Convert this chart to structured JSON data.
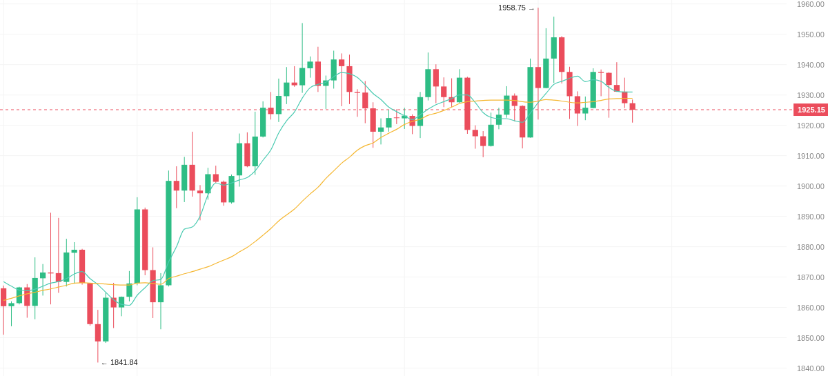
{
  "chart_data": {
    "type": "candlestick",
    "categories": [
      null,
      null,
      null,
      null,
      null,
      null,
      null,
      null,
      null,
      null,
      null,
      null,
      null,
      null,
      null,
      null,
      null,
      null,
      null,
      null,
      null,
      null,
      null,
      null,
      null,
      null,
      null,
      null,
      null,
      null,
      null,
      null,
      null,
      null,
      null,
      null,
      null,
      null,
      null,
      null,
      null,
      null,
      null,
      null,
      null,
      null,
      null,
      null,
      null,
      null,
      null,
      null,
      null,
      null,
      null,
      null,
      null,
      null,
      null,
      null,
      null,
      null,
      null,
      null,
      null,
      null,
      null,
      null,
      null,
      null,
      null,
      null,
      null,
      null,
      null,
      null,
      null,
      null,
      null,
      null,
      null
    ],
    "series": [
      {
        "type": "candlestick",
        "ohlc": [
          [
            1866.3,
            1867.2,
            1851.0,
            1860.4
          ],
          [
            1860.4,
            1862.0,
            1853.8,
            1861.4
          ],
          [
            1861.4,
            1866.8,
            1861.0,
            1866.6
          ],
          [
            1866.6,
            1867.7,
            1856.6,
            1860.5
          ],
          [
            1860.5,
            1876.5,
            1856.1,
            1869.7
          ],
          [
            1869.6,
            1874.3,
            1863.9,
            1871.5
          ],
          [
            1871.5,
            1891.2,
            1861.0,
            1871.2
          ],
          [
            1871.3,
            1889.5,
            1864.8,
            1868.4
          ],
          [
            1868.4,
            1882.6,
            1866.9,
            1878.1
          ],
          [
            1878.0,
            1881.5,
            1867.8,
            1879.0
          ],
          [
            1879.0,
            1879.3,
            1867.5,
            1868.1
          ],
          [
            1868.0,
            1868.1,
            1854.0,
            1854.5
          ],
          [
            1854.5,
            1859.2,
            1841.84,
            1848.8
          ],
          [
            1848.8,
            1864.9,
            1848.3,
            1863.2
          ],
          [
            1863.2,
            1868.1,
            1853.2,
            1860.0
          ],
          [
            1860.0,
            1863.6,
            1857.1,
            1863.5
          ],
          [
            1863.5,
            1872.0,
            1862.0,
            1867.9
          ],
          [
            1867.9,
            1896.3,
            1867.3,
            1892.3
          ],
          [
            1892.3,
            1892.9,
            1870.6,
            1872.3
          ],
          [
            1872.3,
            1879.8,
            1856.5,
            1861.7
          ],
          [
            1861.7,
            1871.3,
            1852.8,
            1867.3
          ],
          [
            1867.3,
            1905.1,
            1866.9,
            1901.7
          ],
          [
            1901.7,
            1906.5,
            1892.7,
            1898.5
          ],
          [
            1898.5,
            1909.6,
            1894.7,
            1907.0
          ],
          [
            1907.0,
            1917.9,
            1896.5,
            1898.5
          ],
          [
            1898.5,
            1900.3,
            1888.7,
            1897.6
          ],
          [
            1897.6,
            1906.0,
            1895.5,
            1903.9
          ],
          [
            1903.9,
            1906.7,
            1901.0,
            1901.4
          ],
          [
            1901.4,
            1901.8,
            1893.5,
            1894.6
          ],
          [
            1894.6,
            1903.8,
            1894.2,
            1903.3
          ],
          [
            1903.5,
            1917.3,
            1899.8,
            1914.1
          ],
          [
            1914.1,
            1917.7,
            1906.2,
            1906.5
          ],
          [
            1906.5,
            1924.5,
            1903.7,
            1916.3
          ],
          [
            1916.3,
            1927.9,
            1916.0,
            1925.8
          ],
          [
            1925.8,
            1931.0,
            1921.9,
            1923.7
          ],
          [
            1923.7,
            1935.4,
            1921.1,
            1929.7
          ],
          [
            1929.6,
            1939.2,
            1927.0,
            1934.1
          ],
          [
            1934.1,
            1939.5,
            1932.7,
            1933.2
          ],
          [
            1933.2,
            1953.7,
            1930.7,
            1938.9
          ],
          [
            1938.8,
            1942.7,
            1935.7,
            1941.0
          ],
          [
            1941.0,
            1945.9,
            1931.0,
            1933.0
          ],
          [
            1933.0,
            1936.4,
            1925.4,
            1934.8
          ],
          [
            1934.8,
            1944.6,
            1932.1,
            1941.7
          ],
          [
            1941.7,
            1943.7,
            1926.3,
            1939.5
          ],
          [
            1939.5,
            1943.3,
            1927.0,
            1931.0
          ],
          [
            1931.0,
            1931.9,
            1922.8,
            1930.7
          ],
          [
            1930.8,
            1934.6,
            1920.7,
            1925.6
          ],
          [
            1925.6,
            1927.6,
            1912.6,
            1917.9
          ],
          [
            1917.9,
            1922.3,
            1913.7,
            1919.3
          ],
          [
            1919.3,
            1925.1,
            1917.9,
            1922.4
          ],
          [
            1922.6,
            1925.3,
            1920.4,
            1922.4
          ],
          [
            1922.3,
            1925.8,
            1918.8,
            1923.2
          ],
          [
            1923.1,
            1923.6,
            1917.1,
            1919.8
          ],
          [
            1919.8,
            1931.0,
            1915.8,
            1929.3
          ],
          [
            1929.3,
            1944.0,
            1928.2,
            1938.5
          ],
          [
            1938.5,
            1940.1,
            1927.3,
            1932.8
          ],
          [
            1932.8,
            1935.8,
            1926.0,
            1929.3
          ],
          [
            1929.3,
            1935.5,
            1926.0,
            1927.6
          ],
          [
            1927.6,
            1938.5,
            1927.4,
            1935.7
          ],
          [
            1935.7,
            1936.0,
            1917.2,
            1918.5
          ],
          [
            1918.5,
            1920.0,
            1912.3,
            1916.4
          ],
          [
            1916.4,
            1918.1,
            1909.5,
            1913.2
          ],
          [
            1913.2,
            1924.2,
            1913.0,
            1920.2
          ],
          [
            1920.2,
            1925.8,
            1918.7,
            1923.5
          ],
          [
            1923.5,
            1932.9,
            1922.5,
            1929.8
          ],
          [
            1929.8,
            1930.5,
            1921.3,
            1926.4
          ],
          [
            1926.4,
            1926.6,
            1912.4,
            1916.0
          ],
          [
            1916.0,
            1942.0,
            1915.9,
            1939.2
          ],
          [
            1939.2,
            1958.75,
            1921.9,
            1932.3
          ],
          [
            1932.3,
            1952.0,
            1932.2,
            1942.0
          ],
          [
            1942.0,
            1955.8,
            1934.0,
            1949.0
          ],
          [
            1949.0,
            1949.4,
            1933.8,
            1937.6
          ],
          [
            1937.6,
            1939.3,
            1922.1,
            1929.6
          ],
          [
            1929.6,
            1931.2,
            1919.8,
            1923.9
          ],
          [
            1923.9,
            1929.5,
            1921.7,
            1925.8
          ],
          [
            1925.7,
            1938.8,
            1925.6,
            1937.6
          ],
          [
            1937.6,
            1938.4,
            1929.6,
            1937.3
          ],
          [
            1937.3,
            1937.5,
            1922.5,
            1933.3
          ],
          [
            1933.3,
            1940.8,
            1931.0,
            1931.1
          ],
          [
            1931.1,
            1935.7,
            1925.7,
            1927.3
          ],
          [
            1927.3,
            1928.5,
            1920.9,
            1925.15
          ]
        ],
        "colors": [
          "#eb4d5c",
          "#2ebd85",
          "#2ebd85",
          "#eb4d5c",
          "#2ebd85",
          "#2ebd85",
          "#eb4d5c",
          "#eb4d5c",
          "#2ebd85",
          "#2ebd85",
          "#eb4d5c",
          "#eb4d5c",
          "#eb4d5c",
          "#2ebd85",
          "#eb4d5c",
          "#2ebd85",
          "#2ebd85",
          "#2ebd85",
          "#eb4d5c",
          "#eb4d5c",
          "#2ebd85",
          "#2ebd85",
          "#eb4d5c",
          "#2ebd85",
          "#eb4d5c",
          "#eb4d5c",
          "#2ebd85",
          "#eb4d5c",
          "#eb4d5c",
          "#2ebd85",
          "#2ebd85",
          "#eb4d5c",
          "#2ebd85",
          "#2ebd85",
          "#eb4d5c",
          "#2ebd85",
          "#2ebd85",
          "#eb4d5c",
          "#2ebd85",
          "#2ebd85",
          "#eb4d5c",
          "#2ebd85",
          "#2ebd85",
          "#eb4d5c",
          "#eb4d5c",
          "#eb4d5c",
          "#eb4d5c",
          "#eb4d5c",
          "#2ebd85",
          "#2ebd85",
          "#eb4d5c",
          "#2ebd85",
          "#eb4d5c",
          "#2ebd85",
          "#2ebd85",
          "#eb4d5c",
          "#eb4d5c",
          "#eb4d5c",
          "#2ebd85",
          "#eb4d5c",
          "#eb4d5c",
          "#eb4d5c",
          "#2ebd85",
          "#2ebd85",
          "#2ebd85",
          "#eb4d5c",
          "#eb4d5c",
          "#2ebd85",
          "#eb4d5c",
          "#2ebd85",
          "#2ebd85",
          "#eb4d5c",
          "#eb4d5c",
          "#eb4d5c",
          "#2ebd85",
          "#2ebd85",
          "#eb4d5c",
          "#eb4d5c",
          "#eb4d5c",
          "#eb4d5c",
          "#eb4d5c"
        ]
      },
      {
        "type": "line",
        "color": "#4ccbb2",
        "values": [
          1868.5,
          1867,
          1865.7,
          1865.5,
          1866,
          1867,
          1868,
          1868.5,
          1869.5,
          1871,
          1871.8,
          1869.5,
          1867.5,
          1865,
          1862.5,
          1861,
          1860.7,
          1864,
          1866.5,
          1868.8,
          1869.2,
          1875,
          1880,
          1885.8,
          1886.5,
          1890.1,
          1897,
          1901,
          1900.3,
          1901,
          1902,
          1902.8,
          1905,
          1908.5,
          1911.9,
          1917.5,
          1921.5,
          1924.4,
          1929,
          1932.4,
          1933.5,
          1934.2,
          1936,
          1937.4,
          1937,
          1935.8,
          1933.3,
          1930.5,
          1928.5,
          1926,
          1924.5,
          1923.2,
          1921.9,
          1923.5,
          1925.3,
          1926.8,
          1927.8,
          1928.8,
          1930,
          1930,
          1927.5,
          1924.2,
          1922.6,
          1922.2,
          1922.2,
          1921.5,
          1921,
          1924,
          1927.5,
          1930.5,
          1933.5,
          1934.5,
          1935.5,
          1936.2,
          1934.4,
          1935,
          1934.5,
          1932.5,
          1931.2,
          1931,
          1931
        ]
      },
      {
        "type": "line",
        "color": "#f5b731",
        "values": [
          1862.3,
          1863,
          1863.8,
          1864.5,
          1865,
          1865.6,
          1866.1,
          1866.7,
          1867.3,
          1868,
          1868.1,
          1868,
          1867.9,
          1867.7,
          1867.5,
          1867.4,
          1867.4,
          1868,
          1868.1,
          1867.9,
          1867.6,
          1869.5,
          1870.3,
          1871.1,
          1871.8,
          1872.6,
          1873.4,
          1874.5,
          1875.6,
          1876.7,
          1878.3,
          1879.8,
          1881.7,
          1883.8,
          1886,
          1888.5,
          1890.5,
          1892.4,
          1895,
          1897.4,
          1899.6,
          1902.5,
          1905,
          1907.5,
          1909.5,
          1911.8,
          1913.3,
          1914.2,
          1916,
          1917.4,
          1918.7,
          1920.3,
          1921.3,
          1922,
          1923.3,
          1924,
          1924.9,
          1926,
          1927.2,
          1927.8,
          1928,
          1928.2,
          1928.3,
          1928.3,
          1928.3,
          1928.2,
          1927.8,
          1927.6,
          1928,
          1928.5,
          1928.3,
          1928,
          1927.6,
          1927.4,
          1927.6,
          1927.8,
          1928.2,
          1928.7,
          1928.8,
          1928.9,
          1928.9
        ]
      }
    ],
    "ylim": [
      1837.4,
      1961.3
    ],
    "yticks": [
      {
        "value": 1840,
        "label": "1840.00"
      },
      {
        "value": 1850,
        "label": "1850.00"
      },
      {
        "value": 1860,
        "label": "1860.00"
      },
      {
        "value": 1870,
        "label": "1870.00"
      },
      {
        "value": 1880,
        "label": "1880.00"
      },
      {
        "value": 1890,
        "label": "1890.00"
      },
      {
        "value": 1900,
        "label": "1900.00"
      },
      {
        "value": 1910,
        "label": "1910.00"
      },
      {
        "value": 1920,
        "label": "1920.00"
      },
      {
        "value": 1930,
        "label": "1930.00"
      },
      {
        "value": 1940,
        "label": "1940.00"
      },
      {
        "value": 1950,
        "label": "1950.00"
      },
      {
        "value": 1960,
        "label": "1960.00"
      }
    ],
    "ref_lines": [
      {
        "axis": "y",
        "value": 1925.15,
        "label": "1925.15",
        "color": "#eb4d5c",
        "line_style": "dashed"
      }
    ],
    "annotations": [
      "1958.75 →",
      "← 1841.84"
    ],
    "grid": true,
    "tick_labels": "y"
  }
}
